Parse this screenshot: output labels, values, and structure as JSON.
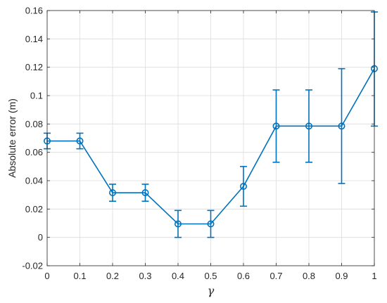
{
  "chart_data": {
    "type": "line",
    "title": "",
    "xlabel": "γ",
    "ylabel": "Absolute error (m)",
    "xlim": [
      0,
      1
    ],
    "ylim": [
      -0.02,
      0.16
    ],
    "xticks": [
      "0",
      "0.1",
      "0.2",
      "0.3",
      "0.4",
      "0.5",
      "0.6",
      "0.7",
      "0.8",
      "0.9",
      "1"
    ],
    "yticks": [
      "-0.02",
      "0",
      "0.02",
      "0.04",
      "0.06",
      "0.08",
      "0.1",
      "0.12",
      "0.14",
      "0.16"
    ],
    "grid": true,
    "series": [
      {
        "x": [
          0,
          0.1,
          0.2,
          0.3,
          0.4,
          0.5,
          0.6,
          0.7,
          0.8,
          0.9,
          1.0
        ],
        "y": [
          0.068,
          0.068,
          0.0315,
          0.0315,
          0.0095,
          0.0095,
          0.036,
          0.0785,
          0.0785,
          0.0785,
          0.119
        ],
        "err_low": [
          0.0625,
          0.0625,
          0.0255,
          0.0255,
          0.0,
          0.0,
          0.022,
          0.053,
          0.053,
          0.038,
          0.0785
        ],
        "err_high": [
          0.0735,
          0.0735,
          0.0375,
          0.0375,
          0.019,
          0.019,
          0.05,
          0.104,
          0.104,
          0.119,
          0.159
        ],
        "color": "#0072BD",
        "marker": "circle"
      }
    ]
  }
}
